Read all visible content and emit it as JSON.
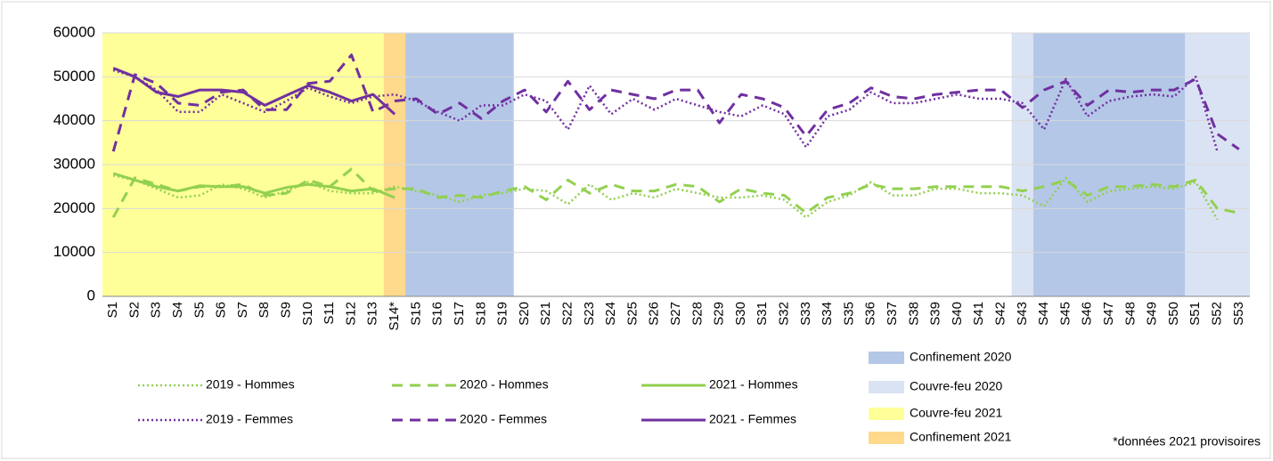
{
  "chart_data": {
    "type": "line",
    "categories": [
      "S1",
      "S2",
      "S3",
      "S4",
      "S5",
      "S6",
      "S7",
      "S8",
      "S9",
      "S10",
      "S11",
      "S12",
      "S13",
      "S14*",
      "S15",
      "S16",
      "S17",
      "S18",
      "S19",
      "S20",
      "S21",
      "S22",
      "S23",
      "S24",
      "S25",
      "S26",
      "S27",
      "S28",
      "S29",
      "S30",
      "S31",
      "S32",
      "S33",
      "S34",
      "S35",
      "S36",
      "S37",
      "S38",
      "S39",
      "S40",
      "S41",
      "S42",
      "S43",
      "S44",
      "S45",
      "S46",
      "S47",
      "S48",
      "S49",
      "S50",
      "S51",
      "S52",
      "S53"
    ],
    "ylim": [
      0,
      60000
    ],
    "yticks": [
      0,
      10000,
      20000,
      30000,
      40000,
      50000,
      60000
    ],
    "grid": true,
    "series": [
      {
        "name": "2019 - Hommes",
        "color": "#92d050",
        "dash": "dotted",
        "values": [
          27500,
          26500,
          24500,
          22500,
          23000,
          25500,
          24500,
          22500,
          24000,
          26000,
          24000,
          23500,
          23500,
          25000,
          24000,
          23000,
          21500,
          23000,
          23500,
          24500,
          24000,
          21000,
          25500,
          22000,
          23500,
          22500,
          24500,
          23500,
          22500,
          22500,
          23000,
          22000,
          18000,
          21500,
          23000,
          26000,
          23000,
          23000,
          24500,
          24500,
          23500,
          23500,
          23000,
          20500,
          27000,
          21500,
          24000,
          24500,
          25000,
          24500,
          26000,
          17500,
          null
        ]
      },
      {
        "name": "2020 - Hommes",
        "color": "#92d050",
        "dash": "dashed",
        "values": [
          18000,
          27000,
          25500,
          24000,
          25000,
          25000,
          25500,
          23000,
          23500,
          26500,
          25000,
          29000,
          24000,
          24500,
          24500,
          22500,
          23000,
          22500,
          24000,
          25000,
          22000,
          26500,
          23500,
          25500,
          24000,
          24000,
          25500,
          25000,
          21500,
          24500,
          23500,
          23000,
          19000,
          22500,
          23500,
          25500,
          24500,
          24500,
          25000,
          25000,
          25000,
          25000,
          24000,
          25000,
          26500,
          23000,
          25000,
          25000,
          25500,
          25000,
          26500,
          20000,
          19000
        ]
      },
      {
        "name": "2021 - Hommes",
        "color": "#92d050",
        "dash": "solid",
        "values": [
          28000,
          26500,
          25000,
          24000,
          25200,
          25000,
          25000,
          23500,
          24800,
          25500,
          25000,
          24000,
          24500,
          22500,
          null,
          null,
          null,
          null,
          null,
          null,
          null,
          null,
          null,
          null,
          null,
          null,
          null,
          null,
          null,
          null,
          null,
          null,
          null,
          null,
          null,
          null,
          null,
          null,
          null,
          null,
          null,
          null,
          null,
          null,
          null,
          null,
          null,
          null,
          null,
          null,
          null,
          null,
          null
        ]
      },
      {
        "name": "2019 - Femmes",
        "color": "#7030a0",
        "dash": "dotted",
        "values": [
          51500,
          50000,
          47000,
          42000,
          42000,
          46000,
          44000,
          42000,
          44500,
          47500,
          45500,
          44000,
          45500,
          46000,
          44500,
          42000,
          40000,
          43500,
          43500,
          46000,
          44500,
          38000,
          48000,
          41500,
          45000,
          42500,
          45000,
          43500,
          42000,
          41000,
          43500,
          41500,
          34000,
          41000,
          42500,
          46500,
          44000,
          44000,
          45000,
          46000,
          45000,
          45000,
          44000,
          38000,
          49500,
          41000,
          44500,
          45500,
          46000,
          45500,
          50000,
          33000,
          null
        ]
      },
      {
        "name": "2020 - Femmes",
        "color": "#7030a0",
        "dash": "dashed",
        "values": [
          33000,
          50500,
          48500,
          44000,
          43500,
          46500,
          47000,
          42500,
          42500,
          48500,
          49000,
          55000,
          42000,
          44500,
          45000,
          41500,
          44000,
          40500,
          44500,
          47000,
          42000,
          49000,
          42500,
          47000,
          46000,
          45000,
          47000,
          47000,
          39500,
          46000,
          45000,
          43000,
          36500,
          42500,
          44000,
          47500,
          45500,
          45000,
          46000,
          46500,
          47000,
          47000,
          43000,
          47000,
          49000,
          43500,
          47000,
          46500,
          47000,
          47000,
          49500,
          37000,
          33500
        ]
      },
      {
        "name": "2021 - Femmes",
        "color": "#7030a0",
        "dash": "solid",
        "values": [
          52000,
          50000,
          46500,
          45500,
          47000,
          47000,
          46500,
          43500,
          45800,
          48000,
          46500,
          44500,
          46000,
          41500,
          null,
          null,
          null,
          null,
          null,
          null,
          null,
          null,
          null,
          null,
          null,
          null,
          null,
          null,
          null,
          null,
          null,
          null,
          null,
          null,
          null,
          null,
          null,
          null,
          null,
          null,
          null,
          null,
          null,
          null,
          null,
          null,
          null,
          null,
          null,
          null,
          null,
          null,
          null
        ]
      }
    ],
    "regions": [
      {
        "name": "Confinement 2020",
        "color": "#b4c7e7",
        "ranges": [
          [
            "S12",
            "S19"
          ],
          [
            "S44",
            "S50"
          ]
        ]
      },
      {
        "name": "Couvre-feu 2020",
        "color": "#dae3f3",
        "ranges": [
          [
            "S43",
            "S53"
          ]
        ]
      },
      {
        "name": "Couvre-feu 2021",
        "color": "#ffff99",
        "ranges": [
          [
            "S1",
            "S13"
          ]
        ]
      },
      {
        "name": "Confinement 2021",
        "color": "#ffd98c",
        "ranges": [
          [
            "S14*",
            "S14*"
          ]
        ]
      }
    ],
    "note": "*données 2021 provisoires"
  }
}
